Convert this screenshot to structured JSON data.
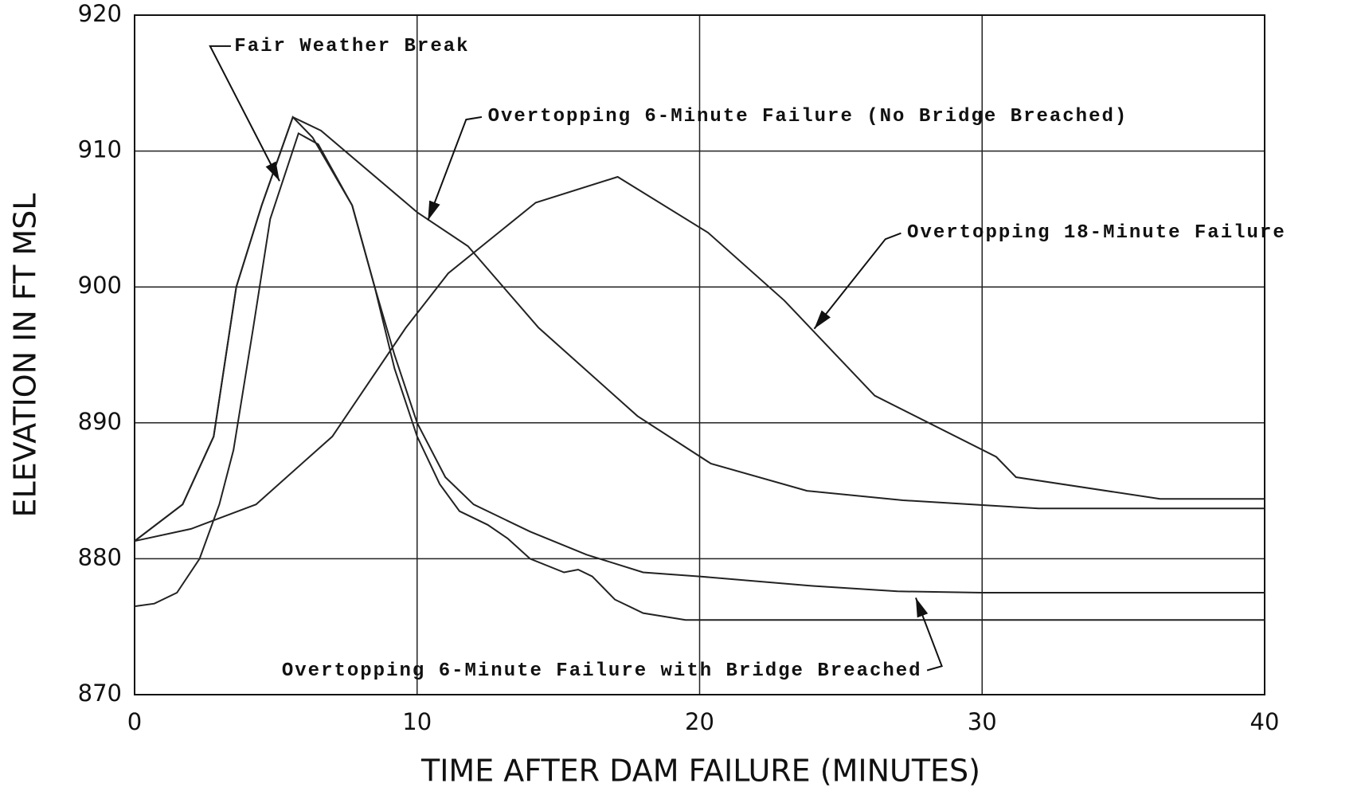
{
  "chart_data": {
    "type": "line",
    "xlabel": "TIME AFTER DAM FAILURE (MINUTES)",
    "ylabel": "ELEVATION IN FT MSL",
    "xlim": [
      0,
      40
    ],
    "xticks": [
      0,
      10,
      20,
      30,
      40
    ],
    "ylim": [
      870,
      920
    ],
    "yticks": [
      870,
      880,
      890,
      900,
      910,
      920
    ],
    "grid": true,
    "series": [
      {
        "name": "Fair Weather Break",
        "color": "#222222",
        "x": [
          0,
          0.7,
          1.5,
          2.3,
          3,
          3.5,
          4.2,
          4.8,
          5.8,
          6.5,
          7.7,
          8.5,
          9.2,
          10,
          10.8,
          11.5,
          12.5,
          13.2,
          14,
          15.2,
          15.7,
          16.2,
          17,
          18,
          19.5,
          40
        ],
        "values": [
          876.5,
          876.7,
          877.5,
          880,
          884,
          888,
          897,
          905,
          911.3,
          910.5,
          906,
          900,
          894,
          889,
          885.5,
          883.5,
          882.5,
          881.5,
          880,
          879,
          879.2,
          878.7,
          877,
          876,
          875.5,
          875.5
        ]
      },
      {
        "name": "Overtopping 6-Minute Failure (No Bridge Breached)",
        "color": "#222222",
        "x": [
          0,
          1.7,
          2.8,
          3.6,
          4.5,
          5.6,
          6.6,
          10,
          11.8,
          14.3,
          17.8,
          20.4,
          23.8,
          27.2,
          32,
          40
        ],
        "values": [
          881.3,
          884,
          889,
          900,
          906,
          912.5,
          911.5,
          905.5,
          903,
          897,
          890.5,
          887,
          885,
          884.3,
          883.7,
          883.7
        ]
      },
      {
        "name": "Overtopping 18-Minute Failure",
        "color": "#222222",
        "x": [
          0,
          2,
          4.3,
          7,
          9.6,
          11.1,
          14.2,
          17.1,
          20.3,
          23,
          26.2,
          30.5,
          31.2,
          36.3,
          40
        ],
        "values": [
          881.3,
          882.2,
          884,
          889,
          897,
          901,
          906.2,
          908.1,
          904,
          899,
          892,
          887.5,
          886,
          884.4,
          884.4
        ]
      },
      {
        "name": "Overtopping 6-Minute Failure with Bridge Breached",
        "color": "#222222",
        "x": [
          0,
          1.7,
          2.8,
          3.6,
          4.5,
          5.6,
          6.3,
          7.7,
          8.5,
          9.2,
          10,
          11,
          12,
          14,
          16,
          18,
          20,
          24,
          27,
          30,
          40
        ],
        "values": [
          881.3,
          884,
          889,
          900,
          906,
          912.5,
          911,
          906,
          900,
          895,
          890,
          886,
          884,
          882,
          880.3,
          879,
          878.7,
          878,
          877.6,
          877.5,
          877.5
        ]
      }
    ]
  }
}
